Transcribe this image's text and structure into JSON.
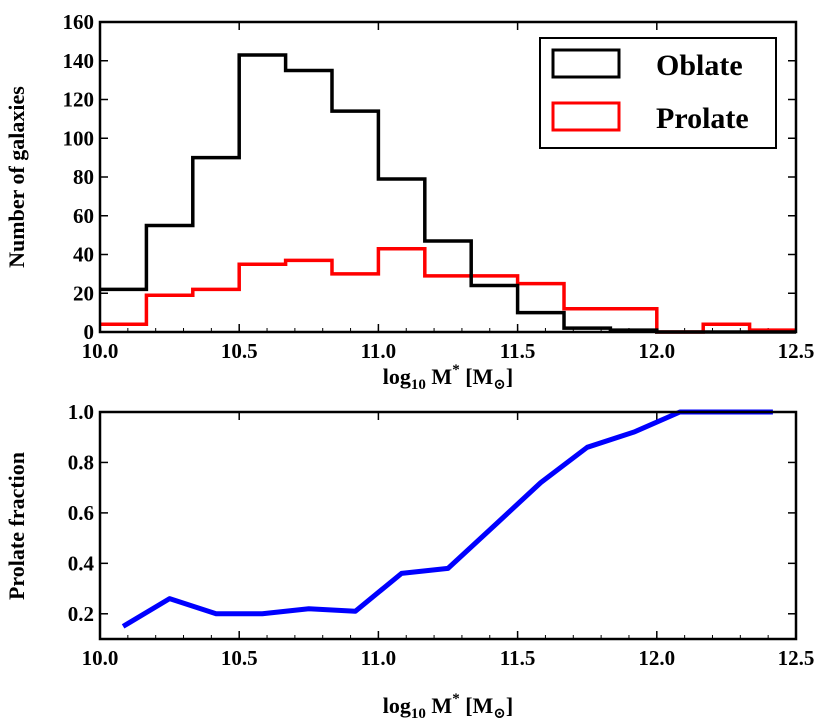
{
  "chart_data": [
    {
      "type": "histogram",
      "xlabel": {
        "main": "log",
        "sub": "10",
        "mid": " M",
        "sup": "*",
        "unit": " [M",
        "unit_sub": "⊙",
        "close": "]"
      },
      "ylabel": "Number of galaxies",
      "xlim": [
        10.0,
        12.5
      ],
      "ylim": [
        0,
        160
      ],
      "xticks": [
        "10.0",
        "10.5",
        "11.0",
        "11.5",
        "12.0",
        "12.5"
      ],
      "yticks": [
        "0",
        "20",
        "40",
        "60",
        "80",
        "100",
        "120",
        "140",
        "160"
      ],
      "bin_edges": [
        10.0,
        10.1667,
        10.3333,
        10.5,
        10.6667,
        10.8333,
        11.0,
        11.1667,
        11.3333,
        11.5,
        11.6667,
        11.8333,
        12.0,
        12.1667,
        12.3333,
        12.5
      ],
      "series": [
        {
          "name": "Oblate",
          "color": "#000000",
          "values": [
            22,
            55,
            90,
            143,
            135,
            114,
            79,
            47,
            24,
            10,
            2,
            1,
            0,
            0,
            0
          ]
        },
        {
          "name": "Prolate",
          "color": "#ff0000",
          "values": [
            4,
            19,
            22,
            35,
            37,
            30,
            43,
            29,
            29,
            25,
            12,
            12,
            0,
            4,
            1
          ]
        }
      ],
      "legend": {
        "position": "top-right",
        "entries": [
          "Oblate",
          "Prolate"
        ]
      }
    },
    {
      "type": "line",
      "xlabel": {
        "main": "log",
        "sub": "10",
        "mid": " M",
        "sup": "*",
        "unit": " [M",
        "unit_sub": "⊙",
        "close": "]"
      },
      "ylabel": "Prolate fraction",
      "xlim": [
        10.0,
        12.5
      ],
      "ylim": [
        0.1,
        1.0
      ],
      "xticks": [
        "10.0",
        "10.5",
        "11.0",
        "11.5",
        "12.0",
        "12.5"
      ],
      "yticks": [
        "0.2",
        "0.4",
        "0.6",
        "0.8",
        "1.0"
      ],
      "series": [
        {
          "name": "Prolate fraction",
          "color": "#0000ff",
          "x": [
            10.083,
            10.25,
            10.417,
            10.583,
            10.75,
            10.917,
            11.083,
            11.25,
            11.417,
            11.583,
            11.75,
            11.917,
            12.083,
            12.25,
            12.417
          ],
          "y": [
            0.15,
            0.26,
            0.2,
            0.2,
            0.22,
            0.21,
            0.36,
            0.38,
            0.55,
            0.72,
            0.86,
            0.92,
            1.0,
            1.0,
            1.0
          ]
        }
      ]
    }
  ]
}
